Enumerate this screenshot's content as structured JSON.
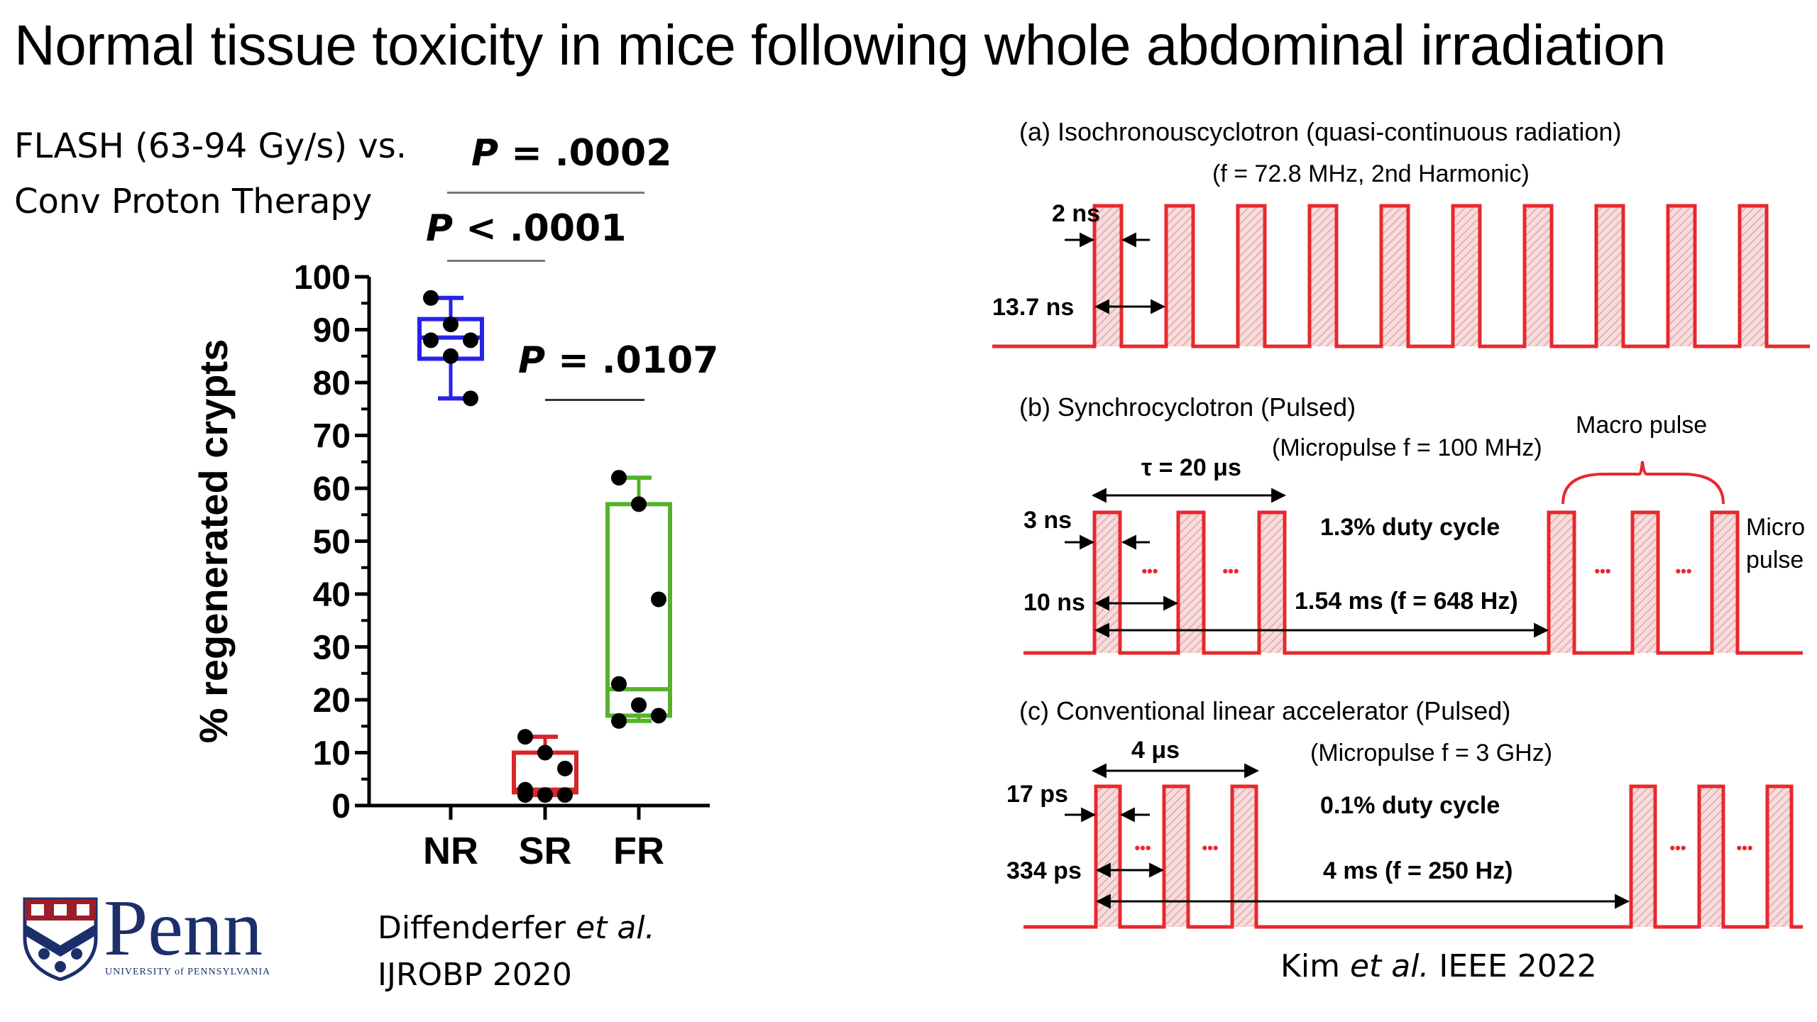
{
  "title": "Normal tissue toxicity in mice following whole abdominal irradiation",
  "comparison": {
    "line1": "FLASH (63-94 Gy/s) vs.",
    "line2": "Conv Proton Therapy"
  },
  "pvalues": [
    {
      "label": "P",
      "value": "= .0002",
      "between": [
        "NR",
        "FR"
      ]
    },
    {
      "label": "P",
      "value": "< .0001",
      "between": [
        "NR",
        "SR"
      ]
    },
    {
      "label": "P",
      "value": "= .0107",
      "between": [
        "SR",
        "FR"
      ]
    }
  ],
  "chart_data": [
    {
      "type": "box",
      "title": "",
      "xlabel": "",
      "ylabel": "% regenerated crypts",
      "ylim": [
        0,
        100
      ],
      "yticks": [
        "0",
        "10",
        "20",
        "30",
        "40",
        "50",
        "60",
        "70",
        "80",
        "90",
        "100"
      ],
      "categories": [
        "NR",
        "SR",
        "FR"
      ],
      "series": [
        {
          "name": "NR",
          "color": "#2a22e8",
          "box": {
            "min": 77,
            "q1": 84.5,
            "median": 88.5,
            "q3": 92,
            "max": 96
          },
          "points": [
            96,
            91,
            88,
            88,
            85,
            77
          ]
        },
        {
          "name": "SR",
          "color": "#d7262b",
          "box": {
            "min": 2,
            "q1": 2.5,
            "median": 3,
            "q3": 10,
            "max": 13
          },
          "points": [
            13,
            10,
            7,
            3,
            2,
            2,
            2
          ]
        },
        {
          "name": "FR",
          "color": "#55b32a",
          "box": {
            "min": 16,
            "q1": 17,
            "median": 22,
            "q3": 57,
            "max": 62
          },
          "points": [
            62,
            57,
            39,
            23,
            19,
            17,
            16
          ]
        }
      ]
    },
    {
      "type": "diagram",
      "panels": [
        {
          "id": "a",
          "heading": "(a)  Isochronouscyclotron (quasi-continuous radiation)",
          "subheading": "(f = 72.8 MHz, 2nd Harmonic)",
          "labels": {
            "width": "2 ns",
            "period": "13.7 ns"
          }
        },
        {
          "id": "b",
          "heading": "(b)  Synchrocyclotron (Pulsed)",
          "subheading": "(Micropulse f = 100 MHz)",
          "labels": {
            "tau": "τ = 20 μs",
            "width": "3 ns",
            "period": "10 ns",
            "duty": "1.3% duty cycle",
            "macro_period": "1.54 ms (f = 648 Hz)",
            "macro": "Macro pulse",
            "micro1": "Micro",
            "micro2": "pulse",
            "dots": "•••"
          }
        },
        {
          "id": "c",
          "heading": "(c)  Conventional linear accelerator (Pulsed)",
          "subheading": "(Micropulse f = 3 GHz)",
          "labels": {
            "tau": "4 μs",
            "width": "17 ps",
            "period": "334 ps",
            "duty": "0.1% duty cycle",
            "macro_period": "4 ms (f = 250 Hz)",
            "dots": "•••"
          }
        }
      ],
      "pulse_color": "#e8282d"
    }
  ],
  "references": {
    "left_line1_a": "Diffenderfer ",
    "left_line1_b": "et al.",
    "left_line2": "IJROBP  2020",
    "right_a": "Kim ",
    "right_b": "et al.",
    "right_c": " IEEE 2022"
  },
  "logo": {
    "name": "Penn",
    "subtitle": "UNIVERSITY of PENNSYLVANIA"
  }
}
